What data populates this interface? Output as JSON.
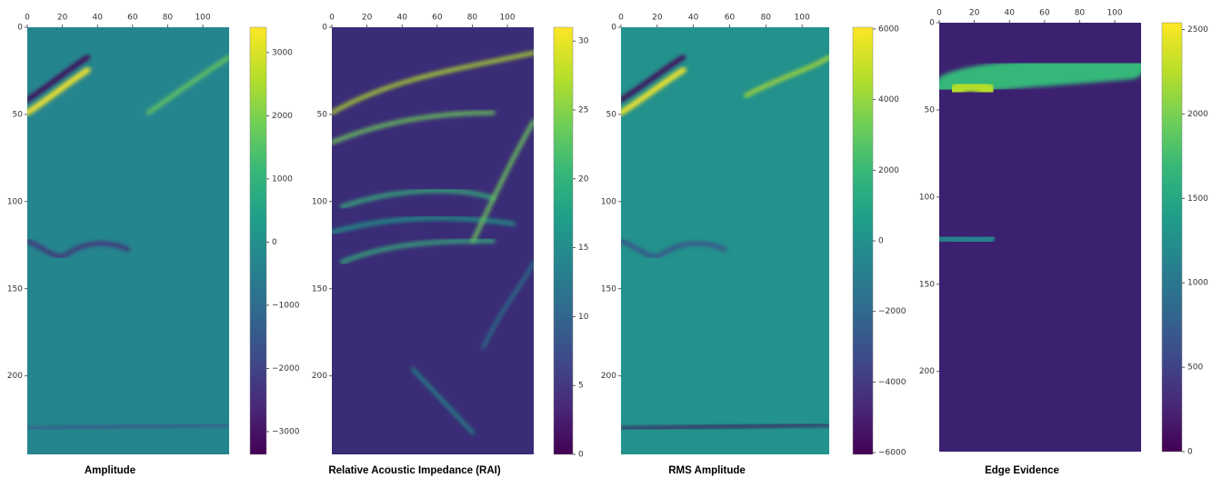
{
  "chart_data": [
    {
      "type": "image",
      "title": "Amplitude",
      "colormap": "viridis",
      "xlim": [
        0,
        115
      ],
      "xticks": [
        0,
        20,
        40,
        60,
        80,
        100
      ],
      "ylim": [
        245,
        0
      ],
      "yticks": [
        0,
        50,
        100,
        150,
        200
      ],
      "clim": [
        -3360,
        3400
      ],
      "cticks": [
        {
          "value": -3000,
          "label": "−3000"
        },
        {
          "value": -2000,
          "label": "−2000"
        },
        {
          "value": -1000,
          "label": "−1000"
        },
        0,
        1000,
        2000,
        3000
      ]
    },
    {
      "type": "image",
      "title": "Relative Acoustic Impedance (RAI)",
      "colormap": "viridis",
      "xlim": [
        0,
        115
      ],
      "xticks": [
        0,
        20,
        40,
        60,
        80,
        100
      ],
      "ylim": [
        245,
        0
      ],
      "yticks": [
        0,
        50,
        100,
        150,
        200
      ],
      "clim": [
        0,
        31
      ],
      "cticks": [
        0,
        5,
        10,
        15,
        20,
        25,
        30
      ]
    },
    {
      "type": "image",
      "title": "RMS Amplitude",
      "colormap": "viridis",
      "xlim": [
        0,
        115
      ],
      "xticks": [
        0,
        20,
        40,
        60,
        80,
        100
      ],
      "ylim": [
        245,
        0
      ],
      "yticks": [
        0,
        50,
        100,
        150,
        200
      ],
      "clim": [
        -6050,
        6050
      ],
      "cticks": [
        {
          "value": -6000,
          "label": "−6000"
        },
        {
          "value": -4000,
          "label": "−4000"
        },
        {
          "value": -2000,
          "label": "−2000"
        },
        0,
        2000,
        4000,
        6000
      ]
    },
    {
      "type": "image",
      "title": "Edge Evidence",
      "colormap": "viridis",
      "xlim": [
        0,
        115
      ],
      "xticks": [
        0,
        20,
        40,
        60,
        80,
        100
      ],
      "ylim": [
        246,
        0
      ],
      "yticks": [
        0,
        50,
        100,
        150,
        200
      ],
      "clim": [
        0,
        2540
      ],
      "cticks": [
        0,
        500,
        1000,
        1500,
        2000,
        2500
      ]
    }
  ]
}
